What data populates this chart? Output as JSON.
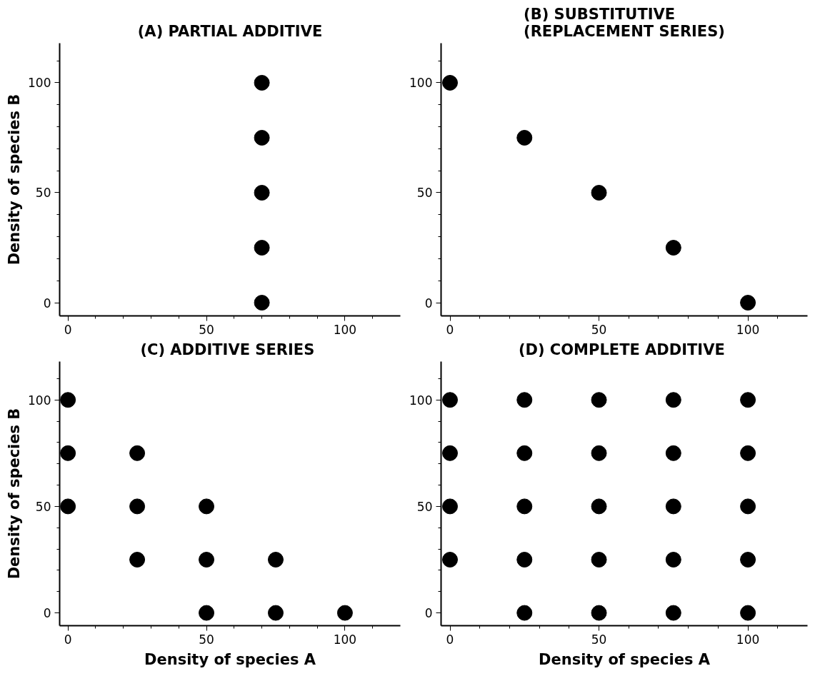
{
  "chart_data": [
    {
      "type": "scatter",
      "title": "(A) PARTIAL ADDITIVE",
      "ylabel": "Density of species B",
      "color": "#000000",
      "marker": "circle",
      "grid": false,
      "x": [
        70,
        70,
        70,
        70,
        70
      ],
      "values": [
        0,
        25,
        50,
        75,
        100
      ],
      "xlim": [
        -3,
        120
      ],
      "ylim": [
        -6,
        118
      ],
      "xticks": [
        0,
        {
          "value": 10,
          "label": null
        },
        {
          "value": 20,
          "label": null
        },
        {
          "value": 30,
          "label": null
        },
        {
          "value": 40,
          "label": null
        },
        50,
        {
          "value": 60,
          "label": null
        },
        {
          "value": 70,
          "label": null
        },
        {
          "value": 80,
          "label": null
        },
        {
          "value": 90,
          "label": null
        },
        100,
        {
          "value": 110,
          "label": null
        }
      ],
      "yticks": [
        0,
        {
          "value": 10,
          "label": null
        },
        {
          "value": 20,
          "label": null
        },
        {
          "value": 30,
          "label": null
        },
        {
          "value": 40,
          "label": null
        },
        50,
        {
          "value": 60,
          "label": null
        },
        {
          "value": 70,
          "label": null
        },
        {
          "value": 80,
          "label": null
        },
        {
          "value": 90,
          "label": null
        },
        100,
        {
          "value": 110,
          "label": null
        }
      ]
    },
    {
      "type": "scatter",
      "title": "(B) SUBSTITUTIVE\n(REPLACEMENT SERIES)",
      "color": "#000000",
      "marker": "circle",
      "grid": false,
      "x": [
        0,
        25,
        50,
        75,
        100
      ],
      "values": [
        100,
        75,
        50,
        25,
        0
      ],
      "xlim": [
        -3,
        120
      ],
      "ylim": [
        -6,
        118
      ],
      "xticks": [
        0,
        {
          "value": 10,
          "label": null
        },
        {
          "value": 20,
          "label": null
        },
        {
          "value": 30,
          "label": null
        },
        {
          "value": 40,
          "label": null
        },
        50,
        {
          "value": 60,
          "label": null
        },
        {
          "value": 70,
          "label": null
        },
        {
          "value": 80,
          "label": null
        },
        {
          "value": 90,
          "label": null
        },
        100,
        {
          "value": 110,
          "label": null
        }
      ],
      "yticks": [
        0,
        {
          "value": 10,
          "label": null
        },
        {
          "value": 20,
          "label": null
        },
        {
          "value": 30,
          "label": null
        },
        {
          "value": 40,
          "label": null
        },
        50,
        {
          "value": 60,
          "label": null
        },
        {
          "value": 70,
          "label": null
        },
        {
          "value": 80,
          "label": null
        },
        {
          "value": 90,
          "label": null
        },
        100,
        {
          "value": 110,
          "label": null
        }
      ]
    },
    {
      "type": "scatter",
      "title": "(C)  ADDITIVE SERIES",
      "xlabel": "Density of species A",
      "ylabel": "Density of species B",
      "color": "#000000",
      "marker": "circle",
      "grid": false,
      "x": [
        0,
        0,
        0,
        25,
        25,
        25,
        50,
        50,
        50,
        75,
        75,
        100
      ],
      "values": [
        100,
        75,
        50,
        75,
        50,
        25,
        50,
        25,
        0,
        25,
        0,
        0
      ],
      "xlim": [
        -3,
        120
      ],
      "ylim": [
        -6,
        118
      ],
      "xticks": [
        0,
        {
          "value": 10,
          "label": null
        },
        {
          "value": 20,
          "label": null
        },
        {
          "value": 30,
          "label": null
        },
        {
          "value": 40,
          "label": null
        },
        50,
        {
          "value": 60,
          "label": null
        },
        {
          "value": 70,
          "label": null
        },
        {
          "value": 80,
          "label": null
        },
        {
          "value": 90,
          "label": null
        },
        100,
        {
          "value": 110,
          "label": null
        }
      ],
      "yticks": [
        0,
        {
          "value": 10,
          "label": null
        },
        {
          "value": 20,
          "label": null
        },
        {
          "value": 30,
          "label": null
        },
        {
          "value": 40,
          "label": null
        },
        50,
        {
          "value": 60,
          "label": null
        },
        {
          "value": 70,
          "label": null
        },
        {
          "value": 80,
          "label": null
        },
        {
          "value": 90,
          "label": null
        },
        100,
        {
          "value": 110,
          "label": null
        }
      ]
    },
    {
      "type": "scatter",
      "title": "(D)  COMPLETE ADDITIVE",
      "xlabel": "Density of species A",
      "color": "#000000",
      "marker": "circle",
      "grid": false,
      "x": [
        0,
        0,
        0,
        0,
        25,
        25,
        25,
        25,
        25,
        50,
        50,
        50,
        50,
        50,
        75,
        75,
        75,
        75,
        75,
        100,
        100,
        100,
        100,
        100
      ],
      "values": [
        100,
        75,
        50,
        25,
        100,
        75,
        50,
        25,
        0,
        100,
        75,
        50,
        25,
        0,
        100,
        75,
        50,
        25,
        0,
        100,
        75,
        50,
        25,
        0
      ],
      "xlim": [
        -3,
        120
      ],
      "ylim": [
        -6,
        118
      ],
      "xticks": [
        0,
        {
          "value": 10,
          "label": null
        },
        {
          "value": 20,
          "label": null
        },
        {
          "value": 30,
          "label": null
        },
        {
          "value": 40,
          "label": null
        },
        50,
        {
          "value": 60,
          "label": null
        },
        {
          "value": 70,
          "label": null
        },
        {
          "value": 80,
          "label": null
        },
        {
          "value": 90,
          "label": null
        },
        100,
        {
          "value": 110,
          "label": null
        }
      ],
      "yticks": [
        0,
        {
          "value": 10,
          "label": null
        },
        {
          "value": 20,
          "label": null
        },
        {
          "value": 30,
          "label": null
        },
        {
          "value": 40,
          "label": null
        },
        50,
        {
          "value": 60,
          "label": null
        },
        {
          "value": 70,
          "label": null
        },
        {
          "value": 80,
          "label": null
        },
        {
          "value": 90,
          "label": null
        },
        100,
        {
          "value": 110,
          "label": null
        }
      ]
    }
  ]
}
